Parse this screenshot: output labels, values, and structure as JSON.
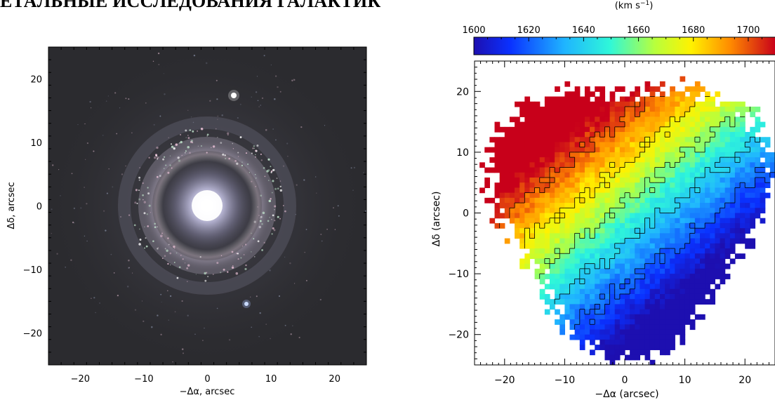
{
  "header": {
    "heading": "ЕТАЛЬНЫЕ ИССЛЕДОВАНИЯ ГАЛАКТИК"
  },
  "left_panel": {
    "x_label": "−Δα, arcsec",
    "y_label": "Δδ, arcsec",
    "x_ticks": [
      "−20",
      "−10",
      "0",
      "10",
      "20"
    ],
    "y_ticks": [
      "20",
      "10",
      "0",
      "−10",
      "−20"
    ],
    "xlim": [
      -25,
      25
    ],
    "ylim": [
      -25,
      25
    ]
  },
  "right_panel": {
    "x_label": "−Δα (arcsec)",
    "y_label": "Δδ (arcsec)",
    "x_ticks": [
      "−20",
      "−10",
      "0",
      "10",
      "20"
    ],
    "y_ticks": [
      "20",
      "10",
      "0",
      "−10",
      "−20"
    ],
    "xlim": [
      -25,
      25
    ],
    "ylim": [
      -25,
      25
    ]
  },
  "colorbar": {
    "unit_label": "(km s⁻¹)",
    "ticks": [
      "1600",
      "1620",
      "1640",
      "1660",
      "1680",
      "1700"
    ],
    "range": [
      1600,
      1710
    ]
  },
  "colors": {
    "sky": "#2b2b2f",
    "galaxy_core": "#f4f3ff",
    "low_velocity": "#0a1fd6",
    "high_velocity": "#c8001a"
  },
  "chart_data": [
    {
      "type": "image",
      "xlabel": "−Δα, arcsec",
      "ylabel": "Δδ, arcsec",
      "xlim": [
        -25,
        25
      ],
      "ylim": [
        -25,
        25
      ],
      "features": {
        "core_center": [
          0,
          0
        ],
        "ring_radius": 11,
        "stars": [
          [
            4,
            18
          ],
          [
            6,
            -16
          ]
        ]
      }
    },
    {
      "type": "heatmap",
      "xlabel": "−Δα (arcsec)",
      "ylabel": "Δδ (arcsec)",
      "xlim": [
        -25,
        25
      ],
      "ylim": [
        -25,
        25
      ],
      "colorbar_label": "(km s⁻¹)",
      "colorbar_range": [
        1600,
        1710
      ],
      "colorbar_ticks": [
        1600,
        1620,
        1640,
        1660,
        1680,
        1700
      ]
    }
  ]
}
